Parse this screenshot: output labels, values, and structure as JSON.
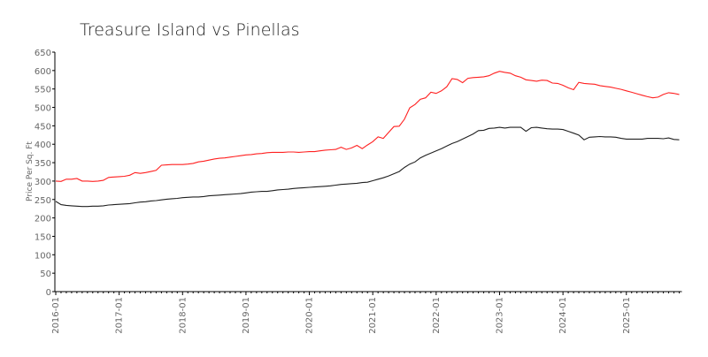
{
  "chart_data": {
    "type": "line",
    "title": "Treasure Island vs Pinellas",
    "xlabel": "",
    "ylabel": "Price Per Sq. Ft",
    "ylim": [
      0,
      650
    ],
    "yticks": [
      0,
      50,
      100,
      150,
      200,
      250,
      300,
      350,
      400,
      450,
      500,
      550,
      600,
      650
    ],
    "x_start": "2016-01",
    "x_frequency": "monthly",
    "xtick_labels": [
      "2016-01",
      "2017-01",
      "2018-01",
      "2019-01",
      "2020-01",
      "2021-01",
      "2022-01",
      "2023-01",
      "2024-01",
      "2025-01"
    ],
    "grid": false,
    "series": [
      {
        "name": "Treasure Island",
        "color": "#ff2020",
        "values": [
          300,
          299,
          305,
          305,
          307,
          300,
          300,
          299,
          300,
          302,
          310,
          311,
          312,
          313,
          316,
          323,
          321,
          323,
          326,
          329,
          343,
          344,
          345,
          345,
          345,
          346,
          348,
          352,
          354,
          357,
          360,
          362,
          363,
          365,
          367,
          369,
          371,
          372,
          374,
          375,
          377,
          378,
          378,
          378,
          379,
          379,
          378,
          379,
          380,
          380,
          382,
          384,
          385,
          386,
          392,
          386,
          390,
          397,
          388,
          398,
          407,
          420,
          416,
          432,
          448,
          449,
          468,
          499,
          508,
          522,
          526,
          541,
          538,
          545,
          556,
          578,
          576,
          567,
          579,
          581,
          582,
          583,
          586,
          593,
          598,
          595,
          593,
          586,
          582,
          575,
          573,
          571,
          574,
          573,
          566,
          565,
          560,
          553,
          548,
          568,
          565,
          564,
          563,
          559,
          557,
          555,
          552,
          549,
          545,
          541,
          537,
          533,
          529,
          526,
          528,
          535,
          540,
          538,
          535
        ]
      },
      {
        "name": "Pinellas",
        "color": "#202020",
        "values": [
          245,
          236,
          234,
          233,
          232,
          231,
          231,
          232,
          232,
          233,
          235,
          236,
          237,
          238,
          239,
          241,
          243,
          244,
          246,
          247,
          249,
          251,
          252,
          253,
          255,
          256,
          257,
          257,
          258,
          260,
          261,
          262,
          263,
          264,
          265,
          266,
          268,
          270,
          271,
          272,
          272,
          274,
          276,
          277,
          278,
          280,
          281,
          282,
          283,
          284,
          285,
          286,
          287,
          289,
          291,
          292,
          293,
          294,
          296,
          297,
          301,
          305,
          309,
          314,
          320,
          326,
          337,
          346,
          352,
          363,
          370,
          376,
          382,
          388,
          395,
          402,
          407,
          414,
          421,
          428,
          437,
          438,
          443,
          444,
          446,
          444,
          446,
          446,
          446,
          435,
          445,
          446,
          444,
          442,
          441,
          441,
          440,
          435,
          430,
          425,
          412,
          419,
          420,
          421,
          420,
          420,
          419,
          416,
          414,
          414,
          414,
          414,
          416,
          416,
          416,
          415,
          417,
          413,
          412
        ]
      }
    ]
  }
}
